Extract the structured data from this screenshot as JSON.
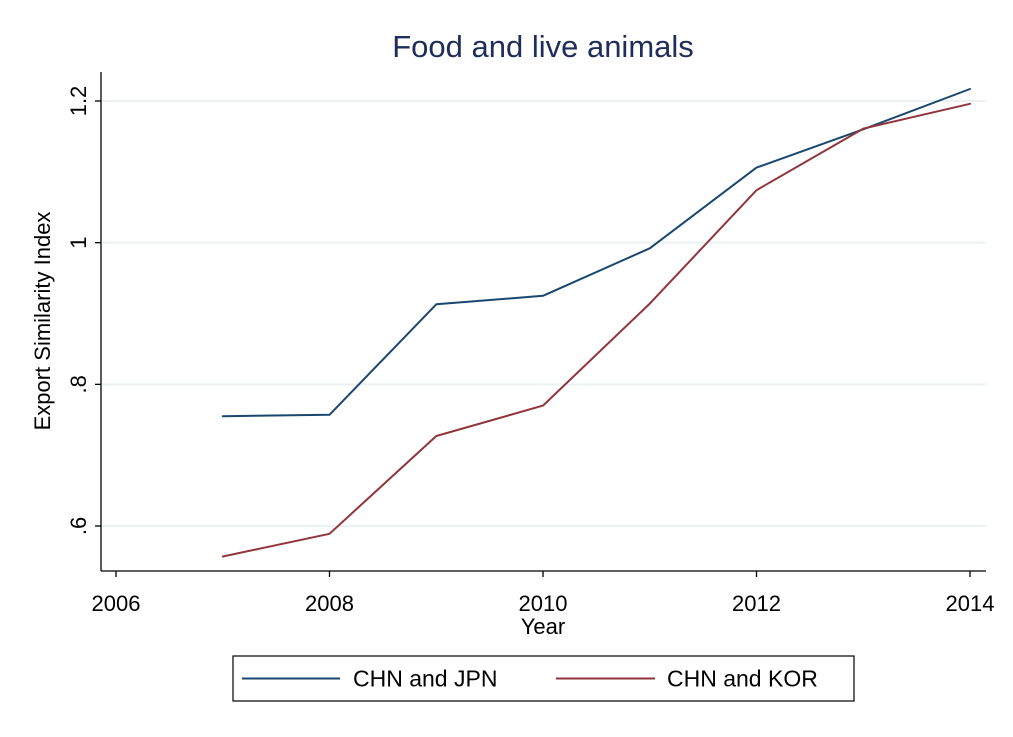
{
  "chart_data": {
    "type": "line",
    "title": "Food and live animals",
    "xlabel": "Year",
    "ylabel": "Export Similarity Index",
    "xlim": [
      2006,
      2014
    ],
    "ylim": [
      0.6,
      1.2
    ],
    "x_ticks": [
      {
        "value": 2006,
        "label": "2006"
      },
      {
        "value": 2008,
        "label": "2008"
      },
      {
        "value": 2010,
        "label": "2010"
      },
      {
        "value": 2012,
        "label": "2012"
      },
      {
        "value": 2014,
        "label": "2014"
      }
    ],
    "y_ticks": [
      {
        "value": 0.6,
        "label": ".6"
      },
      {
        "value": 0.8,
        "label": ".8"
      },
      {
        "value": 1.0,
        "label": "1"
      },
      {
        "value": 1.2,
        "label": "1.2"
      }
    ],
    "grid": "horizontal",
    "legend_position": "bottom",
    "series": [
      {
        "name": "CHN and JPN",
        "color": "#1a476f",
        "x": [
          2007,
          2008,
          2009,
          2010,
          2011,
          2012,
          2013,
          2014
        ],
        "y": [
          0.755,
          0.757,
          0.913,
          0.925,
          0.992,
          1.106,
          1.16,
          1.217
        ]
      },
      {
        "name": "CHN and KOR",
        "color": "#90353b",
        "x": [
          2007,
          2008,
          2009,
          2010,
          2011,
          2012,
          2013,
          2014
        ],
        "y": [
          0.557,
          0.589,
          0.727,
          0.77,
          0.914,
          1.074,
          1.161,
          1.196
        ]
      }
    ]
  },
  "colors": {
    "title": "#1e2d5a",
    "grid": "#eaf2f3",
    "axis": "#000000",
    "frame": "#ffffff"
  }
}
